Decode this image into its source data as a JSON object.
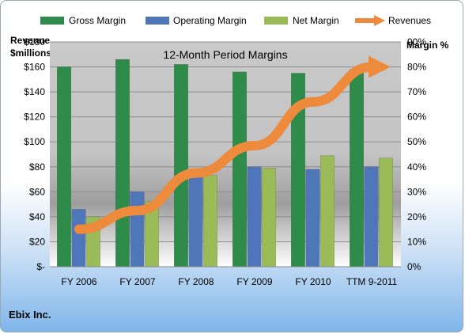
{
  "company": "Ebix Inc.",
  "chart_data": {
    "type": "bar",
    "title": "12-Month Period Margins",
    "ylabel_left_line1": "Revenue",
    "ylabel_left_line2": "$millions",
    "ylabel_right": "Margin %",
    "categories": [
      "FY 2006",
      "FY 2007",
      "FY 2008",
      "FY 2009",
      "FY 2010",
      "TTM 9-2011"
    ],
    "y_left_ticks": [
      "$-",
      "$20",
      "$40",
      "$60",
      "$80",
      "$100",
      "$120",
      "$140",
      "$160",
      "$180"
    ],
    "y_right_ticks": [
      "0%",
      "10%",
      "20%",
      "30%",
      "40%",
      "50%",
      "60%",
      "70%",
      "80%",
      "90%"
    ],
    "ylim_left": [
      0,
      180
    ],
    "ylim_right": [
      0,
      90
    ],
    "grid": true,
    "legend_position": "top",
    "bar_series": [
      {
        "name": "Gross Margin",
        "axis": "right",
        "color": "#2e8b4a",
        "values": [
          80,
          83,
          81,
          78,
          77.5,
          79
        ]
      },
      {
        "name": "Operating Margin",
        "axis": "right",
        "color": "#4f76b8",
        "values": [
          23,
          30,
          39,
          40,
          39,
          40
        ]
      },
      {
        "name": "Net Margin",
        "axis": "right",
        "color": "#9bbb59",
        "values": [
          20,
          26,
          36.5,
          39.5,
          44.5,
          43.5
        ]
      }
    ],
    "line_series": {
      "name": "Revenues",
      "axis": "left",
      "color": "#ee8a3c",
      "values": [
        30,
        45,
        75,
        97,
        132,
        160
      ]
    }
  }
}
